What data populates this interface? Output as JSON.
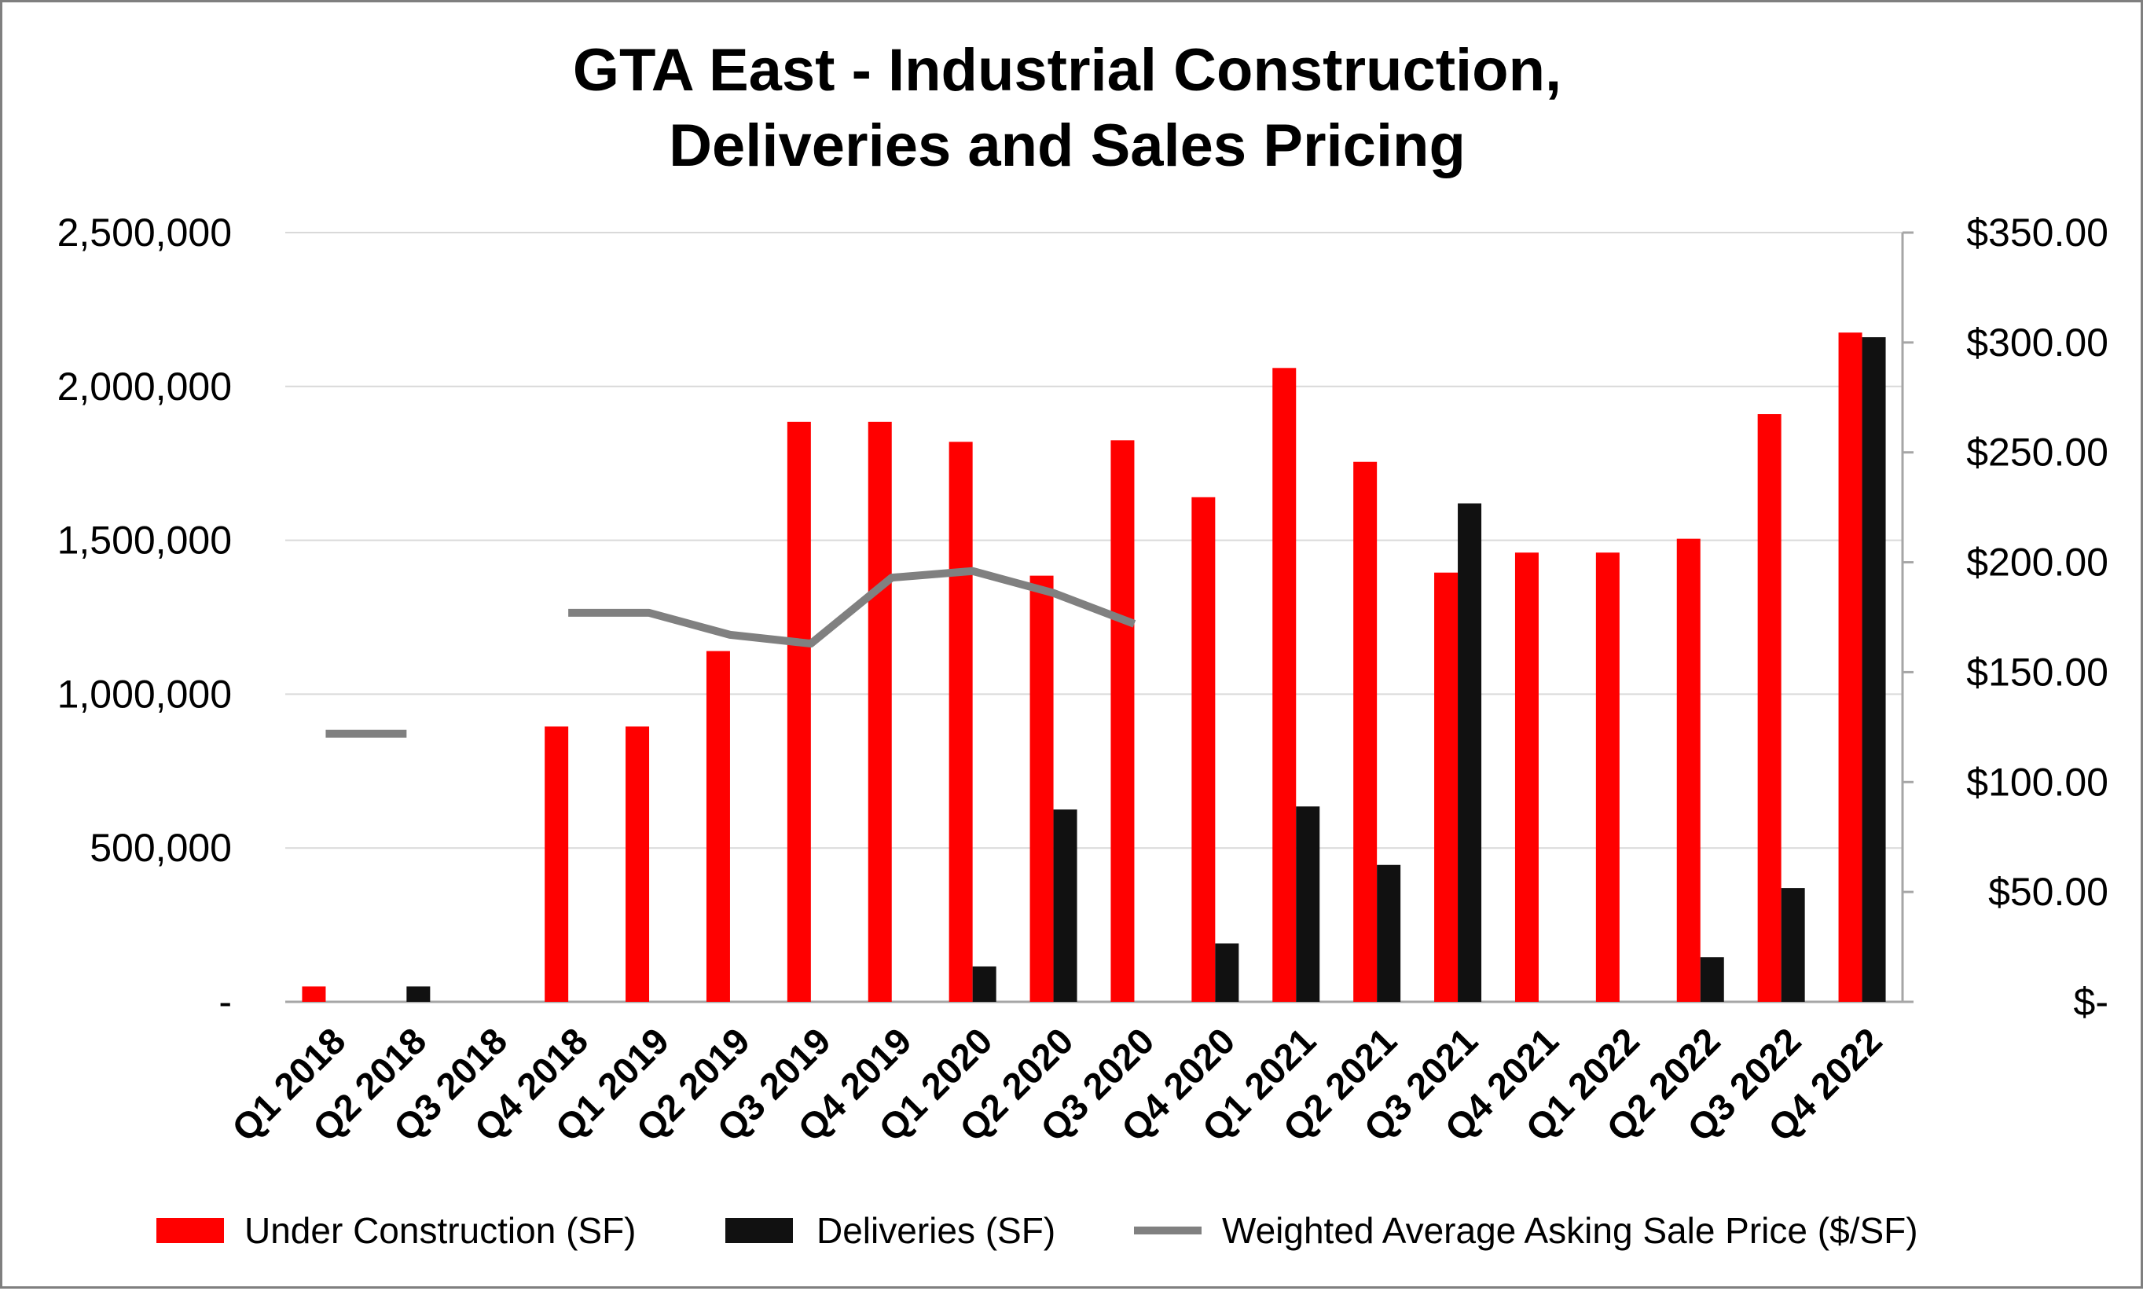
{
  "colors": {
    "under_construction": "#ff0000",
    "deliveries": "#111111",
    "price_line": "#808080",
    "gridline": "#d9d9d9",
    "axis": "#a6a6a6"
  },
  "chart_data": {
    "type": "bar",
    "title": [
      "GTA East - Industrial Construction,",
      "Deliveries and Sales Pricing"
    ],
    "categories": [
      "Q1 2018",
      "Q2 2018",
      "Q3 2018",
      "Q4 2018",
      "Q1 2019",
      "Q2 2019",
      "Q3 2019",
      "Q4 2019",
      "Q1 2020",
      "Q2 2020",
      "Q3 2020",
      "Q4 2020",
      "Q1 2021",
      "Q2 2021",
      "Q3 2021",
      "Q4 2021",
      "Q1 2022",
      "Q2 2022",
      "Q3 2022",
      "Q4 2022"
    ],
    "series": [
      {
        "name": "Under Construction (SF)",
        "type": "bar",
        "axis": "left",
        "values": [
          50000,
          0,
          0,
          895000,
          895000,
          1140000,
          1885000,
          1885000,
          1820000,
          1385000,
          1825000,
          1640000,
          2060000,
          1755000,
          1395000,
          1460000,
          1460000,
          1505000,
          1910000,
          2175000
        ]
      },
      {
        "name": "Deliveries (SF)",
        "type": "bar",
        "axis": "left",
        "values": [
          0,
          50000,
          0,
          0,
          0,
          0,
          0,
          0,
          115000,
          625000,
          0,
          190000,
          635000,
          445000,
          1620000,
          0,
          0,
          145000,
          370000,
          2160000
        ]
      },
      {
        "name": "Weighted Average Asking Sale Price ($/SF)",
        "type": "line",
        "axis": "right",
        "values": [
          122,
          122,
          null,
          177,
          177,
          167,
          163,
          193,
          196,
          186,
          172,
          null,
          null,
          null,
          null,
          null,
          null,
          null,
          null,
          null
        ]
      }
    ],
    "y_left": {
      "min": 0,
      "max": 2500000,
      "ticks": [
        "-",
        "500,000",
        "1,000,000",
        "1,500,000",
        "2,000,000",
        "2,500,000"
      ]
    },
    "y_right": {
      "min": 0,
      "max": 350,
      "ticks": [
        "$-",
        "$50.00",
        "$100.00",
        "$150.00",
        "$200.00",
        "$250.00",
        "$300.00",
        "$350.00"
      ]
    },
    "grid": true,
    "legend_position": "bottom"
  }
}
